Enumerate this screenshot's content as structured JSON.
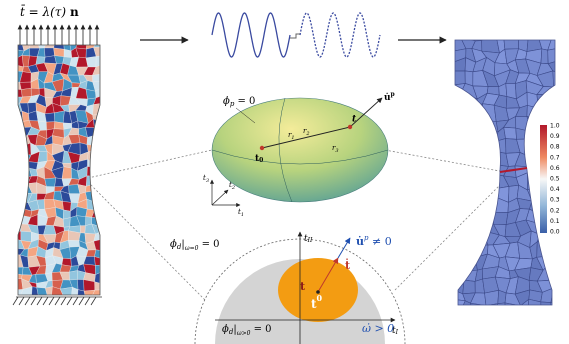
{
  "load": {
    "lhs": "t̄ = λ(τ) ",
    "n": "n"
  },
  "ellipsoid": {
    "phi_p": [
      "ϕ",
      "p",
      " = 0"
    ],
    "u_dot_p": [
      "u̇",
      "p"
    ],
    "t": "t",
    "t0": [
      "t",
      "0"
    ],
    "r1": [
      "r",
      "1"
    ],
    "r2": [
      "r",
      "2"
    ],
    "r3": [
      "r",
      "3"
    ],
    "axes": [
      [
        "t",
        "1"
      ],
      [
        "t",
        "2"
      ],
      [
        "t",
        "3"
      ]
    ]
  },
  "yield": {
    "phi_d_zero": [
      "ϕ",
      "d",
      "|",
      "ω=0",
      " = 0"
    ],
    "phi_d_pos": [
      "ϕ",
      "d",
      "|",
      "ω>0",
      " = 0"
    ],
    "t_II": [
      "t",
      "II"
    ],
    "t_I": [
      "t",
      "I"
    ],
    "u_dot_p_nonzero": [
      "u̇",
      "p",
      " ≠ 0"
    ],
    "t_dot": "ṫ",
    "t": "t",
    "t0": [
      "t",
      "0"
    ],
    "omega_dot": "ω̇ > 0"
  },
  "colorbar": [
    "1.0",
    "0.9",
    "0.8",
    "0.7",
    "0.6",
    "0.5",
    "0.4",
    "0.3",
    "0.2",
    "0.1",
    "0.0"
  ]
}
